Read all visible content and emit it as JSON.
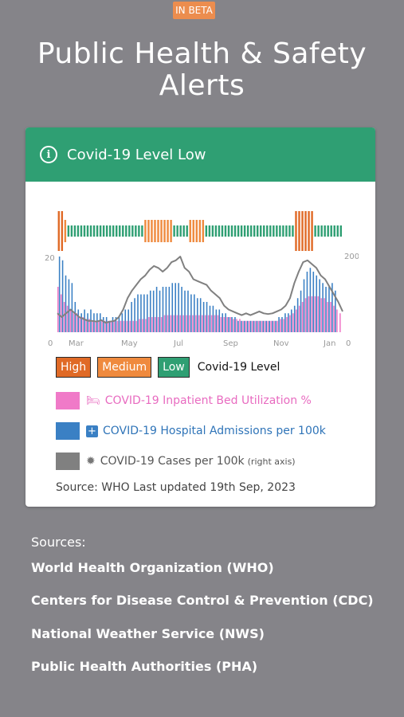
{
  "badge": "IN BETA",
  "title_line1": "Public Health & Safety",
  "title_line2": "Alerts",
  "card": {
    "title": "Covid-19 Level Low",
    "legend": {
      "high": "High",
      "medium": "Medium",
      "low": "Low",
      "level_label": "Covid-19 Level",
      "bed": "COVID-19 Inpatient Bed Utilization %",
      "admissions": "COVID-19 Hospital Admissions per 100k",
      "cases": "COVID-19 Cases per 100k",
      "cases_note": "(right axis)"
    },
    "source": "Source: WHO Last updated 19th Sep, 2023"
  },
  "colors": {
    "bg": "#858489",
    "header": "#2f9f73",
    "high": "#e06a26",
    "medium": "#ef8a3e",
    "low": "#2f9f73",
    "bed": "#f07ac8",
    "admissions": "#3a80c4",
    "cases": "#808080"
  },
  "chart_data": {
    "type": "bar",
    "left_axis": {
      "min": 0,
      "max": 20,
      "tick_labels": [
        "0",
        "20"
      ]
    },
    "right_axis": {
      "min": 0,
      "max": 200,
      "tick_labels": [
        "0",
        "200"
      ]
    },
    "x_labels": [
      "Mar",
      "May",
      "Jul",
      "Sep",
      "Nov",
      "Jan"
    ],
    "levels": [
      "H",
      "H",
      "M",
      "L",
      "L",
      "L",
      "L",
      "L",
      "L",
      "L",
      "L",
      "L",
      "L",
      "L",
      "L",
      "L",
      "L",
      "L",
      "L",
      "L",
      "L",
      "L",
      "L",
      "L",
      "L",
      "L",
      "L",
      "M",
      "M",
      "M",
      "M",
      "M",
      "M",
      "M",
      "M",
      "M",
      "L",
      "L",
      "L",
      "L",
      "L",
      "M",
      "M",
      "M",
      "M",
      "M",
      "L",
      "L",
      "L",
      "L",
      "L",
      "L",
      "L",
      "L",
      "L",
      "L",
      "L",
      "L",
      "L",
      "L",
      "L",
      "L",
      "L",
      "L",
      "L",
      "L",
      "L",
      "L",
      "L",
      "L",
      "L",
      "L",
      "L",
      "L",
      "H",
      "H",
      "H",
      "H",
      "H",
      "H",
      "L",
      "L",
      "L",
      "L",
      "L",
      "L",
      "L",
      "L",
      "L"
    ],
    "series": [
      {
        "name": "COVID-19 Inpatient Bed Utilization %",
        "axis": "left",
        "values": [
          12,
          10,
          8,
          7,
          6,
          5,
          5,
          4,
          4,
          3.5,
          3.5,
          3,
          3,
          3,
          3,
          3,
          3,
          3,
          3,
          3,
          3,
          3,
          3,
          3,
          3,
          3,
          3.5,
          3.5,
          3.5,
          4,
          4,
          4,
          4,
          4,
          4.5,
          4.5,
          4.5,
          4.5,
          4.5,
          4.5,
          4.5,
          4.5,
          4.5,
          4.5,
          4.5,
          4.5,
          4.5,
          4.5,
          4.5,
          4.5,
          4.5,
          4.5,
          4,
          4,
          4,
          4,
          3.5,
          3.5,
          3.5,
          3,
          3,
          3,
          3,
          3,
          3,
          3,
          3,
          3,
          3,
          3,
          3,
          3.5,
          3.5,
          4,
          4.5,
          5,
          6,
          7,
          8,
          9,
          9.5,
          9.5,
          9.5,
          9.5,
          9,
          9,
          8,
          8,
          7,
          6,
          5
        ]
      },
      {
        "name": "COVID-19 Hospital Admissions per 100k",
        "axis": "left",
        "values": [
          20,
          19,
          15,
          14,
          13,
          8,
          6,
          5,
          6,
          5,
          6,
          5,
          5,
          5,
          4,
          4,
          3,
          4,
          4,
          4,
          5,
          6,
          6,
          8,
          9,
          10,
          10,
          10,
          10,
          11,
          11,
          12,
          11,
          12,
          12,
          12,
          13,
          13,
          13,
          12,
          11,
          11,
          10,
          10,
          9,
          9,
          8,
          8,
          7,
          7,
          6,
          6,
          5,
          5,
          4,
          4,
          4,
          3,
          3,
          3,
          3,
          3,
          3,
          3,
          3,
          3,
          3,
          3,
          3,
          3,
          4,
          4,
          5,
          5,
          6,
          7,
          9,
          11,
          14,
          16,
          17,
          16,
          15,
          14,
          13,
          12,
          12,
          13,
          11
        ]
      },
      {
        "name": "COVID-19 Cases per 100k",
        "axis": "right",
        "values": [
          50,
          40,
          50,
          60,
          50,
          40,
          35,
          30,
          30,
          28,
          32,
          25,
          28,
          30,
          40,
          60,
          90,
          110,
          125,
          140,
          150,
          165,
          175,
          170,
          160,
          170,
          185,
          190,
          200,
          170,
          160,
          140,
          135,
          130,
          125,
          110,
          100,
          90,
          70,
          60,
          55,
          50,
          45,
          50,
          45,
          50,
          55,
          50,
          48,
          50,
          55,
          60,
          70,
          90,
          130,
          160,
          185,
          190,
          180,
          170,
          150,
          140,
          120,
          100,
          80,
          55
        ]
      }
    ]
  },
  "sources": {
    "label": "Sources:",
    "items": [
      "World Health Organization (WHO)",
      "Centers for Disease Control & Prevention (CDC)",
      "National Weather Service (NWS)",
      "Public Health Authorities (PHA)"
    ]
  }
}
